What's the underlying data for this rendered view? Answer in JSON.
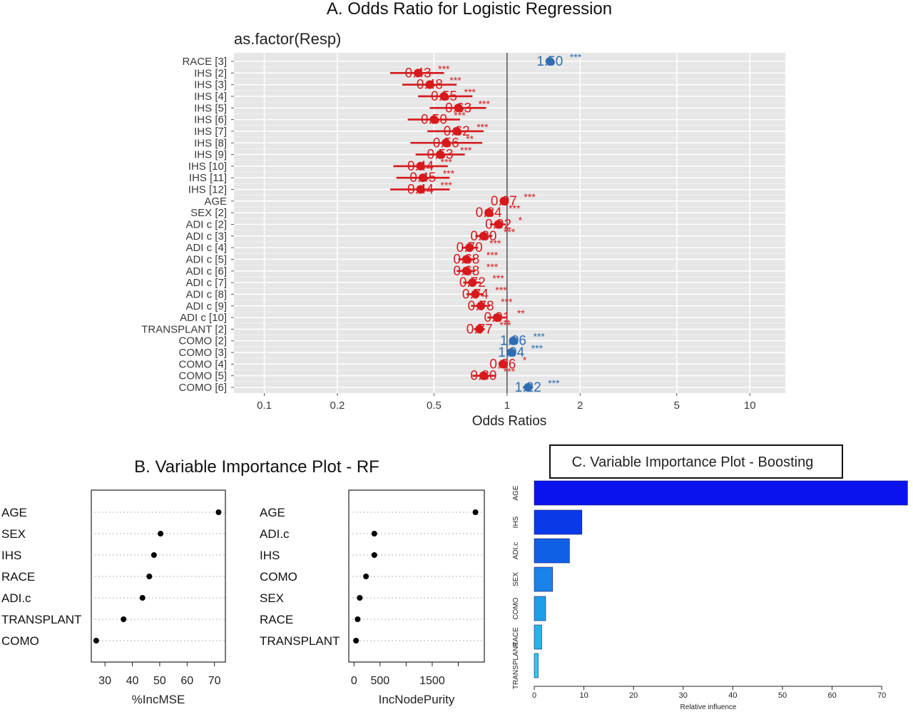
{
  "chart_data": [
    {
      "type": "scatter",
      "title": "A.   Odds Ratio for Logistic Regression",
      "subtitle": "as.factor(Resp)",
      "xlabel": "Odds Ratios",
      "xscale": "log",
      "xlim": [
        0.075,
        14
      ],
      "xticks": [
        0.1,
        0.2,
        0.5,
        1,
        2,
        5,
        10
      ],
      "xtick_labels": [
        "0.1",
        "0.2",
        "0.5",
        "1",
        "2",
        "5",
        "10"
      ],
      "reference_line": 1,
      "grid": true,
      "colors": {
        "below_one": "#d7191c",
        "above_one": "#2e6db3",
        "panel": "#e6e6e6"
      },
      "terms": [
        {
          "label": "RACE [3]",
          "or": 1.5,
          "lo": 1.44,
          "hi": 1.57,
          "text": "1.50",
          "stars": "***"
        },
        {
          "label": "IHS [2]",
          "or": 0.43,
          "lo": 0.33,
          "hi": 0.55,
          "text": "0.43",
          "stars": "***"
        },
        {
          "label": "IHS [3]",
          "or": 0.48,
          "lo": 0.37,
          "hi": 0.62,
          "text": "0.48",
          "stars": "***"
        },
        {
          "label": "IHS [4]",
          "or": 0.55,
          "lo": 0.43,
          "hi": 0.72,
          "text": "0.55",
          "stars": "***"
        },
        {
          "label": "IHS [5]",
          "or": 0.63,
          "lo": 0.48,
          "hi": 0.82,
          "text": "0.63",
          "stars": "***"
        },
        {
          "label": "IHS [6]",
          "or": 0.5,
          "lo": 0.39,
          "hi": 0.64,
          "text": "0.50",
          "stars": "***"
        },
        {
          "label": "IHS [7]",
          "or": 0.62,
          "lo": 0.47,
          "hi": 0.8,
          "text": "0.62",
          "stars": "***"
        },
        {
          "label": "IHS [8]",
          "or": 0.56,
          "lo": 0.4,
          "hi": 0.79,
          "text": "0.56",
          "stars": "**"
        },
        {
          "label": "IHS [9]",
          "or": 0.53,
          "lo": 0.42,
          "hi": 0.67,
          "text": "0.53",
          "stars": "***"
        },
        {
          "label": "IHS [10]",
          "or": 0.44,
          "lo": 0.34,
          "hi": 0.57,
          "text": "0.44",
          "stars": "***"
        },
        {
          "label": "IHS [11]",
          "or": 0.45,
          "lo": 0.35,
          "hi": 0.58,
          "text": "0.45",
          "stars": "***"
        },
        {
          "label": "IHS [12]",
          "or": 0.44,
          "lo": 0.33,
          "hi": 0.58,
          "text": "0.44",
          "stars": "***"
        },
        {
          "label": "AGE",
          "or": 0.97,
          "lo": 0.96,
          "hi": 0.98,
          "text": "0.97",
          "stars": "***"
        },
        {
          "label": "SEX [2]",
          "or": 0.84,
          "lo": 0.81,
          "hi": 0.87,
          "text": "0.84",
          "stars": "***"
        },
        {
          "label": "ADI c [2]",
          "or": 0.92,
          "lo": 0.85,
          "hi": 0.99,
          "text": "0.92",
          "stars": "*"
        },
        {
          "label": "ADI c [3]",
          "or": 0.8,
          "lo": 0.74,
          "hi": 0.87,
          "text": "0.80",
          "stars": "***"
        },
        {
          "label": "ADI c [4]",
          "or": 0.7,
          "lo": 0.65,
          "hi": 0.76,
          "text": "0.70",
          "stars": "***"
        },
        {
          "label": "ADI c [5]",
          "or": 0.68,
          "lo": 0.63,
          "hi": 0.74,
          "text": "0.68",
          "stars": "***"
        },
        {
          "label": "ADI c [6]",
          "or": 0.68,
          "lo": 0.62,
          "hi": 0.74,
          "text": "0.68",
          "stars": "***"
        },
        {
          "label": "ADI c [7]",
          "or": 0.72,
          "lo": 0.66,
          "hi": 0.78,
          "text": "0.72",
          "stars": "***"
        },
        {
          "label": "ADI c [8]",
          "or": 0.74,
          "lo": 0.68,
          "hi": 0.8,
          "text": "0.74",
          "stars": "***"
        },
        {
          "label": "ADI c [9]",
          "or": 0.78,
          "lo": 0.71,
          "hi": 0.85,
          "text": "0.78",
          "stars": "***"
        },
        {
          "label": "ADI c [10]",
          "or": 0.91,
          "lo": 0.83,
          "hi": 0.99,
          "text": "0.91",
          "stars": "**"
        },
        {
          "label": "TRANSPLANT [2]",
          "or": 0.77,
          "lo": 0.73,
          "hi": 0.81,
          "text": "0.77",
          "stars": "***"
        },
        {
          "label": "COMO [2]",
          "or": 1.06,
          "lo": 1.04,
          "hi": 1.08,
          "text": "1.06",
          "stars": "***"
        },
        {
          "label": "COMO [3]",
          "or": 1.04,
          "lo": 1.02,
          "hi": 1.06,
          "text": "1.04",
          "stars": "***"
        },
        {
          "label": "COMO [4]",
          "or": 0.96,
          "lo": 0.93,
          "hi": 0.99,
          "text": "0.96",
          "stars": "*"
        },
        {
          "label": "COMO [5]",
          "or": 0.8,
          "lo": 0.72,
          "hi": 0.9,
          "text": "0.80",
          "stars": "***"
        },
        {
          "label": "COMO [6]",
          "or": 1.22,
          "lo": 1.16,
          "hi": 1.28,
          "text": "1.22",
          "stars": "***"
        }
      ]
    },
    {
      "type": "scatter",
      "title": "B. Variable Importance Plot - RF",
      "panels": [
        {
          "xlabel": "%IncMSE",
          "xlim": [
            25,
            74
          ],
          "xticks": [
            30,
            40,
            50,
            60,
            70
          ],
          "xtick_labels": [
            "30",
            "40",
            "50",
            "60",
            "70"
          ],
          "categories": [
            "AGE",
            "SEX",
            "IHS",
            "RACE",
            "ADI.c",
            "TRANSPLANT",
            "COMO"
          ],
          "values": [
            71.5,
            50.3,
            47.9,
            46.2,
            43.7,
            36.8,
            26.8
          ]
        },
        {
          "xlabel": "IncNodePurity",
          "xlim": [
            -100,
            2500
          ],
          "xticks": [
            0,
            500,
            1000,
            1500,
            2000
          ],
          "xtick_labels": [
            "0",
            "500",
            "",
            "1500",
            ""
          ],
          "categories": [
            "AGE",
            "ADI.c",
            "IHS",
            "COMO",
            "SEX",
            "RACE",
            "TRANSPLANT"
          ],
          "values": [
            2330,
            390,
            390,
            230,
            110,
            70,
            40
          ]
        }
      ]
    },
    {
      "type": "bar",
      "orientation": "horizontal",
      "title": "C. Variable Importance Plot - Boosting",
      "xlabel": "Relative influence",
      "xlim": [
        0,
        75
      ],
      "xticks": [
        0,
        10,
        20,
        30,
        40,
        50,
        60,
        70
      ],
      "xtick_labels": [
        "0",
        "10",
        "20",
        "30",
        "40",
        "50",
        "60",
        "70"
      ],
      "categories": [
        "AGE",
        "IHS",
        "ADI.c",
        "SEX",
        "COMO",
        "RACE",
        "TRANSPLANT"
      ],
      "values": [
        75.2,
        9.6,
        7.1,
        3.7,
        2.3,
        1.5,
        0.8
      ],
      "colors": [
        "#0a12ee",
        "#0a3ae8",
        "#1060e6",
        "#1a82e8",
        "#1f9ee8",
        "#24b6ea",
        "#28cfee"
      ]
    }
  ]
}
